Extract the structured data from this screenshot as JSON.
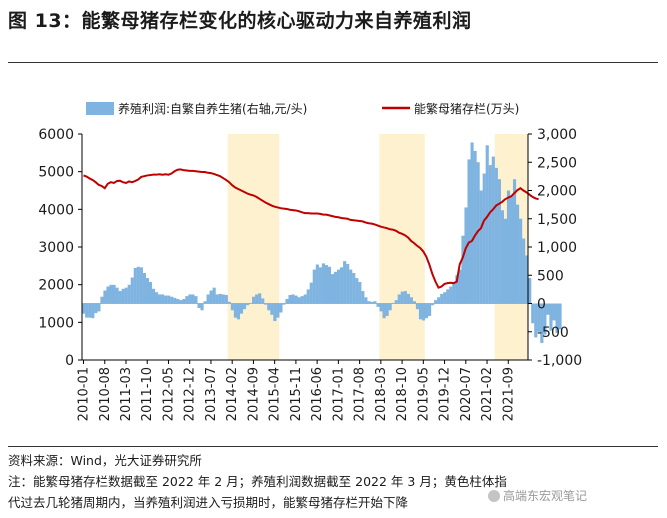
{
  "title": "图 13：能繁母猪存栏变化的核心驱动力来自养殖利润",
  "chart_data": {
    "type": "bar+line",
    "legend": {
      "bar": "养殖利润:自繁自养生猪(右轴,元/头)",
      "line": "能繁母猪存栏(万头)",
      "placement": "top"
    },
    "left_axis": {
      "range": [
        0,
        6000
      ],
      "ticks": [
        "0",
        "1000",
        "2000",
        "3000",
        "4000",
        "5000",
        "6000"
      ]
    },
    "right_axis": {
      "range": [
        -1000,
        3000
      ],
      "ticks": [
        "-1,000",
        "-500",
        "0",
        "500",
        "1,000",
        "1,500",
        "2,000",
        "2,500",
        "3,000"
      ]
    },
    "x_tick_labels": [
      "2010-01",
      "2010-08",
      "2011-03",
      "2011-10",
      "2012-05",
      "2012-12",
      "2013-07",
      "2014-02",
      "2014-09",
      "2015-04",
      "2015-11",
      "2016-06",
      "2017-01",
      "2017-08",
      "2018-03",
      "2018-10",
      "2019-05",
      "2019-12",
      "2020-07",
      "2021-02",
      "2021-09"
    ],
    "shaded_periods": [
      {
        "from": "2014-01",
        "to": "2015-05"
      },
      {
        "from": "2018-03",
        "to": "2019-05"
      },
      {
        "from": "2021-05",
        "to": "2022-03"
      }
    ],
    "colors": {
      "bar": "#7fb3e0",
      "line": "#c00000",
      "shade": "#fdf1cf"
    },
    "start": "2010-01",
    "profit": [
      -180,
      -250,
      -250,
      -260,
      -170,
      -140,
      120,
      230,
      300,
      330,
      330,
      280,
      220,
      260,
      280,
      330,
      460,
      630,
      650,
      640,
      540,
      450,
      380,
      260,
      200,
      160,
      160,
      140,
      140,
      120,
      100,
      80,
      60,
      80,
      130,
      160,
      160,
      130,
      -80,
      -120,
      40,
      160,
      230,
      280,
      160,
      170,
      160,
      150,
      30,
      -120,
      -250,
      -280,
      -180,
      -100,
      -30,
      10,
      120,
      160,
      180,
      90,
      -20,
      -120,
      -200,
      -310,
      -250,
      -160,
      -20,
      80,
      150,
      160,
      140,
      110,
      130,
      160,
      250,
      370,
      600,
      690,
      640,
      710,
      680,
      650,
      520,
      560,
      600,
      640,
      750,
      700,
      600,
      540,
      450,
      380,
      220,
      110,
      40,
      30,
      40,
      -60,
      -140,
      -260,
      -220,
      -120,
      10,
      60,
      160,
      210,
      220,
      170,
      110,
      40,
      -100,
      -280,
      -300,
      -260,
      -220,
      -30,
      60,
      110,
      170,
      200,
      250,
      300,
      350,
      500,
      600,
      1200,
      1700,
      2550,
      2850,
      2700,
      2500,
      2000,
      2300,
      2800,
      2450,
      2600,
      2400,
      2200,
      1650,
      1500,
      2000,
      1900,
      2200,
      1750,
      1500,
      1150,
      850,
      450,
      -350,
      -600,
      -500,
      -700,
      -550,
      -200,
      -480,
      -300,
      -520,
      -460
    ],
    "sows": [
      4900,
      4870,
      4820,
      4780,
      4720,
      4650,
      4620,
      4560,
      4680,
      4720,
      4700,
      4750,
      4760,
      4720,
      4700,
      4740,
      4720,
      4750,
      4790,
      4860,
      4880,
      4900,
      4910,
      4920,
      4920,
      4930,
      4920,
      4930,
      4920,
      4950,
      5010,
      5050,
      5060,
      5040,
      5030,
      5020,
      5020,
      5010,
      5000,
      4990,
      4990,
      4970,
      4960,
      4940,
      4910,
      4880,
      4830,
      4780,
      4720,
      4640,
      4580,
      4540,
      4500,
      4460,
      4420,
      4390,
      4370,
      4330,
      4280,
      4230,
      4180,
      4140,
      4100,
      4070,
      4050,
      4030,
      4020,
      4010,
      3990,
      3980,
      3970,
      3950,
      3920,
      3900,
      3900,
      3890,
      3890,
      3890,
      3880,
      3860,
      3860,
      3840,
      3820,
      3800,
      3790,
      3770,
      3760,
      3750,
      3720,
      3710,
      3700,
      3690,
      3680,
      3650,
      3630,
      3620,
      3600,
      3570,
      3540,
      3520,
      3500,
      3470,
      3460,
      3430,
      3380,
      3350,
      3310,
      3250,
      3160,
      3100,
      3030,
      2970,
      2880,
      2740,
      2530,
      2280,
      2080,
      1920,
      1950,
      2020,
      2040,
      2050,
      2040,
      2080,
      2540,
      2720,
      2970,
      3120,
      3160,
      3300,
      3420,
      3500,
      3700,
      3800,
      3920,
      4000,
      4100,
      4150,
      4200,
      4270,
      4310,
      4350,
      4430,
      4510,
      4560,
      4500,
      4450,
      4390,
      4330,
      4290,
      4270
    ]
  },
  "footer": {
    "source": "资料来源：Wind，光大证券研究所",
    "note_line1": "注：能繁母猪存栏数据截至 2022 年 2 月；养殖利润数据截至 2022 年 3 月；黄色柱体指",
    "note_line2": "代过去几轮猪周期内，当养殖利润进入亏损期时，能繁母猪存栏开始下降"
  },
  "watermark": "高端东宏观笔记"
}
